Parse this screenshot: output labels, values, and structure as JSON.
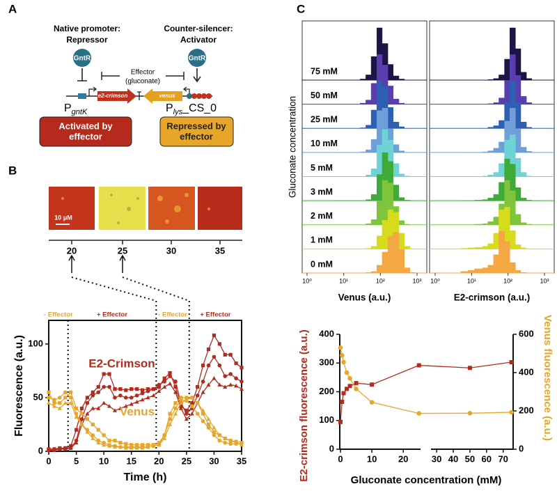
{
  "panel_labels": [
    "A",
    "B",
    "C"
  ],
  "diagram": {
    "left_title": [
      "Native promoter:",
      "Repressor"
    ],
    "right_title": [
      "Counter-silencer:",
      "Activator"
    ],
    "protein": "GntR",
    "effector": [
      "Effector",
      "(gluconate)"
    ],
    "gene1": "e2-crimson",
    "gene2": "venus",
    "promoter1": {
      "main": "P",
      "sub": "gntK"
    },
    "promoter2": {
      "main": "P",
      "sub": "lys",
      "suffix": "_CS_0"
    },
    "box1": [
      "Activated by",
      "effector"
    ],
    "box2": [
      "Repressed by",
      "effector"
    ]
  },
  "micrographs": {
    "times": [
      20,
      25,
      30,
      35
    ],
    "scale_bar": "10 μM"
  },
  "chart_data": [
    {
      "type": "replicate_line",
      "x": [
        0,
        1,
        2,
        3,
        4,
        5,
        6,
        7,
        8,
        9,
        10,
        11,
        12,
        13,
        14,
        15,
        16,
        17,
        18,
        19,
        20,
        21,
        22,
        23,
        24,
        25,
        26,
        27,
        28,
        29,
        30,
        31,
        32,
        33,
        34,
        35
      ],
      "xlim": [
        0,
        35
      ],
      "xticks": [
        0,
        5,
        10,
        15,
        20,
        25,
        30,
        35
      ],
      "ylim": [
        0,
        122
      ],
      "yticks": [
        0,
        50,
        100
      ],
      "xlabel": "Time (h)",
      "ylabel": "Fluorescence (a.u.)",
      "vlines": [
        3.5,
        19.5,
        25.5
      ],
      "annotations": [
        {
          "text": "- Effector",
          "color": "#e8a628"
        },
        {
          "text": "+ Effector",
          "color": "#b52a1c"
        },
        {
          "text": "- Effector",
          "color": "#e8a628"
        },
        {
          "text": "+ Effector",
          "color": "#b52a1c"
        }
      ],
      "series": [
        {
          "name": "E2-Crimson",
          "color": "#b52a1c",
          "replicates": [
            [
              2,
              2,
              3,
              3,
              5,
              20,
              40,
              50,
              55,
              60,
              72,
              72,
              58,
              58,
              57,
              58,
              58,
              57,
              58,
              58,
              60,
              68,
              73,
              60,
              42,
              38,
              45,
              60,
              80,
              95,
              108,
              100,
              90,
              90,
              82,
              78
            ],
            [
              2,
              2,
              2,
              3,
              3,
              10,
              30,
              45,
              52,
              55,
              60,
              60,
              50,
              52,
              50,
              50,
              52,
              54,
              56,
              58,
              62,
              65,
              70,
              65,
              45,
              35,
              40,
              52,
              65,
              80,
              88,
              80,
              70,
              72,
              68,
              65
            ],
            [
              1,
              1,
              2,
              2,
              3,
              8,
              25,
              35,
              40,
              40,
              45,
              42,
              38,
              40,
              42,
              44,
              46,
              48,
              50,
              52,
              56,
              60,
              63,
              55,
              40,
              30,
              35,
              45,
              55,
              62,
              68,
              62,
              60,
              62,
              61,
              58
            ]
          ]
        },
        {
          "name": "Venus",
          "color": "#e8a628",
          "replicates": [
            [
              55,
              45,
              45,
              50,
              55,
              40,
              35,
              30,
              25,
              20,
              15,
              10,
              10,
              8,
              7,
              6,
              6,
              6,
              6,
              6,
              8,
              15,
              35,
              45,
              50,
              50,
              50,
              45,
              35,
              25,
              18,
              15,
              12,
              10,
              9,
              8
            ],
            [
              50,
              48,
              50,
              55,
              50,
              35,
              25,
              20,
              15,
              10,
              8,
              6,
              5,
              4,
              4,
              4,
              4,
              4,
              4,
              5,
              6,
              15,
              30,
              40,
              48,
              47,
              42,
              35,
              28,
              22,
              15,
              10,
              8,
              7,
              7,
              7
            ],
            [
              45,
              42,
              40,
              45,
              45,
              32,
              25,
              18,
              12,
              8,
              6,
              5,
              4,
              4,
              3,
              3,
              3,
              3,
              4,
              5,
              6,
              12,
              25,
              35,
              45,
              48,
              50,
              45,
              38,
              30,
              22,
              15,
              12,
              10,
              8,
              6
            ]
          ]
        }
      ]
    },
    {
      "type": "ridgeline",
      "ylabel": "Gluconate concentration",
      "conditions": [
        "75 mM",
        "50 mM",
        "25 mM",
        "10 mM",
        "5 mM",
        "3 mM",
        "2 mM",
        "1 mM",
        "0 mM"
      ],
      "colors": [
        "#1c1646",
        "#5a3eb0",
        "#2d5fb3",
        "#6f9fd8",
        "#6fd3d6",
        "#3faa38",
        "#7fc43a",
        "#d6dc1c",
        "#f4a743"
      ],
      "bins": [
        5,
        8,
        12,
        20,
        28,
        40,
        56,
        80,
        112,
        160,
        224,
        320,
        450,
        640,
        900
      ],
      "xlim": [
        1,
        1000
      ],
      "xticks": [
        {
          "value": 1,
          "label": "10⁰"
        },
        {
          "value": 10,
          "label": "10¹"
        },
        {
          "value": 100,
          "label": "10²"
        },
        {
          "value": 1000,
          "label": "10³"
        }
      ],
      "log_x": true,
      "ylim": [
        0,
        100
      ],
      "panels": [
        {
          "xlabel": "Venus (a.u.)",
          "counts": [
            [
              0,
              0,
              0,
              0,
              2,
              10,
              45,
              100,
              70,
              30,
              8,
              2,
              0,
              0
            ],
            [
              0,
              0,
              0,
              0,
              2,
              8,
              40,
              95,
              75,
              35,
              10,
              2,
              0,
              0
            ],
            [
              0,
              0,
              0,
              0,
              1,
              6,
              35,
              90,
              80,
              40,
              12,
              3,
              0,
              0
            ],
            [
              0,
              0,
              0,
              0,
              1,
              5,
              25,
              80,
              85,
              45,
              15,
              3,
              0,
              0
            ],
            [
              0,
              0,
              0,
              0,
              0,
              3,
              15,
              60,
              90,
              70,
              25,
              5,
              1,
              0
            ],
            [
              0,
              0,
              0,
              0,
              0,
              2,
              12,
              50,
              92,
              75,
              30,
              6,
              1,
              0
            ],
            [
              0,
              0,
              0,
              0,
              0,
              2,
              10,
              45,
              85,
              80,
              35,
              8,
              1,
              0
            ],
            [
              0,
              0,
              0,
              0,
              0,
              1,
              5,
              25,
              55,
              75,
              70,
              30,
              5,
              0
            ],
            [
              0,
              0,
              0,
              0,
              0,
              1,
              3,
              15,
              40,
              70,
              78,
              45,
              10,
              1
            ]
          ]
        },
        {
          "xlabel": "E2-crimson (a.u.)",
          "counts": [
            [
              0,
              0,
              0,
              0,
              1,
              3,
              10,
              40,
              100,
              60,
              15,
              3,
              0,
              0
            ],
            [
              0,
              0,
              0,
              0,
              1,
              3,
              12,
              45,
              95,
              55,
              15,
              3,
              0,
              0
            ],
            [
              0,
              0,
              0,
              0,
              2,
              5,
              15,
              50,
              90,
              50,
              12,
              2,
              0,
              0
            ],
            [
              0,
              0,
              0,
              1,
              3,
              8,
              20,
              60,
              85,
              45,
              10,
              2,
              0,
              0
            ],
            [
              0,
              0,
              0,
              1,
              3,
              8,
              25,
              70,
              80,
              35,
              8,
              1,
              0,
              0
            ],
            [
              0,
              0,
              1,
              2,
              5,
              12,
              35,
              80,
              70,
              25,
              5,
              1,
              0,
              0
            ],
            [
              0,
              0,
              1,
              2,
              6,
              15,
              40,
              85,
              65,
              20,
              4,
              1,
              0,
              0
            ],
            [
              1,
              2,
              3,
              5,
              10,
              30,
              75,
              80,
              35,
              8,
              2,
              0,
              0,
              0
            ],
            [
              3,
              5,
              8,
              10,
              15,
              35,
              80,
              60,
              20,
              5,
              1,
              0,
              0,
              0
            ]
          ]
        }
      ]
    },
    {
      "type": "dual_axis",
      "x": [
        0,
        0.5,
        1,
        2,
        3,
        5,
        10,
        25,
        50,
        75
      ],
      "x_segments": [
        {
          "xlim": [
            0,
            25.5
          ],
          "xticks": [
            0,
            10,
            20
          ]
        },
        {
          "xlim": [
            27,
            76
          ],
          "xticks": [
            30,
            40,
            50,
            60,
            70
          ]
        }
      ],
      "ylim": [
        0,
        400
      ],
      "yticks": [
        0,
        100,
        200,
        300,
        400
      ],
      "y2lim": [
        0,
        600
      ],
      "y2ticks": [
        0,
        200,
        400,
        600
      ],
      "xlabel": "Gluconate concentration (mM)",
      "ylabel": "E2-crimson fluorescence (a.u.)",
      "y2label": "Venus fluorescence (a.u.)",
      "series": [
        {
          "color": "#b52a1c",
          "marker": "square",
          "values": [
            95,
            165,
            195,
            210,
            220,
            230,
            225,
            292,
            283,
            303
          ]
        },
        {
          "color": "#e8a628",
          "marker": "circle",
          "axis": "y2",
          "values": [
            530,
            490,
            455,
            400,
            370,
            315,
            245,
            187,
            188,
            193
          ]
        }
      ]
    }
  ]
}
